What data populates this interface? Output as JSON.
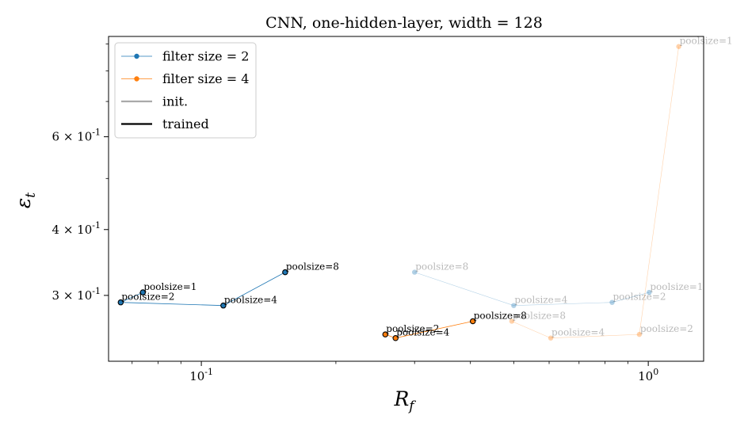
{
  "chart_data": {
    "type": "line",
    "title": "CNN, one-hidden-layer, width = 128",
    "xlabel": "R_f",
    "ylabel": "ε_t",
    "xscale": "log",
    "yscale": "log",
    "xlim": [
      0.062,
      1.33
    ],
    "ylim": [
      0.225,
      0.93
    ],
    "x_ticks": [
      {
        "value": 0.1,
        "label": "10^{-1}"
      },
      {
        "value": 1.0,
        "label": "10^{0}"
      }
    ],
    "y_ticks": [
      {
        "value": 0.3,
        "label": "3 × 10^{-1}"
      },
      {
        "value": 0.4,
        "label": "4 × 10^{-1}"
      },
      {
        "value": 0.6,
        "label": "6 × 10^{-1}"
      }
    ],
    "legend": {
      "position": "upper-left",
      "entries": [
        {
          "label": "filter size = 2",
          "color": "#1f77b4",
          "kind": "line-marker"
        },
        {
          "label": "filter size = 4",
          "color": "#ff7f0e",
          "kind": "line-marker"
        },
        {
          "label": "init.",
          "color": "#aaaaaa",
          "kind": "line"
        },
        {
          "label": "trained",
          "color": "#000000",
          "kind": "line"
        }
      ]
    },
    "series": [
      {
        "name": "filter size = 2 (trained)",
        "color": "#1f77b4",
        "state": "trained",
        "points": [
          {
            "x": 0.074,
            "y": 0.304,
            "label": "poolsize=1"
          },
          {
            "x": 0.066,
            "y": 0.291,
            "label": "poolsize=2"
          },
          {
            "x": 0.112,
            "y": 0.287,
            "label": "poolsize=4"
          },
          {
            "x": 0.154,
            "y": 0.332,
            "label": "poolsize=8"
          }
        ]
      },
      {
        "name": "filter size = 4 (trained)",
        "color": "#ff7f0e",
        "state": "trained",
        "points": [
          {
            "x": 0.258,
            "y": 0.253,
            "label": "poolsize=2"
          },
          {
            "x": 0.272,
            "y": 0.249,
            "label": "poolsize=4"
          },
          {
            "x": 0.405,
            "y": 0.268,
            "label": "poolsize=8"
          }
        ]
      },
      {
        "name": "filter size = 2 (init.)",
        "color": "#1f77b4",
        "state": "init",
        "points": [
          {
            "x": 1.005,
            "y": 0.304,
            "label": "poolsize=1"
          },
          {
            "x": 0.83,
            "y": 0.291,
            "label": "poolsize=2"
          },
          {
            "x": 0.5,
            "y": 0.287,
            "label": "poolsize=4"
          },
          {
            "x": 0.3,
            "y": 0.332,
            "label": "poolsize=8"
          }
        ]
      },
      {
        "name": "filter size = 4 (init.)",
        "color": "#ff7f0e",
        "state": "init",
        "points": [
          {
            "x": 1.17,
            "y": 0.89,
            "label": "poolsize=1"
          },
          {
            "x": 0.955,
            "y": 0.253,
            "label": "poolsize=2"
          },
          {
            "x": 0.605,
            "y": 0.249,
            "label": "poolsize=4"
          },
          {
            "x": 0.495,
            "y": 0.268,
            "label": "poolsize=8"
          }
        ]
      }
    ]
  }
}
